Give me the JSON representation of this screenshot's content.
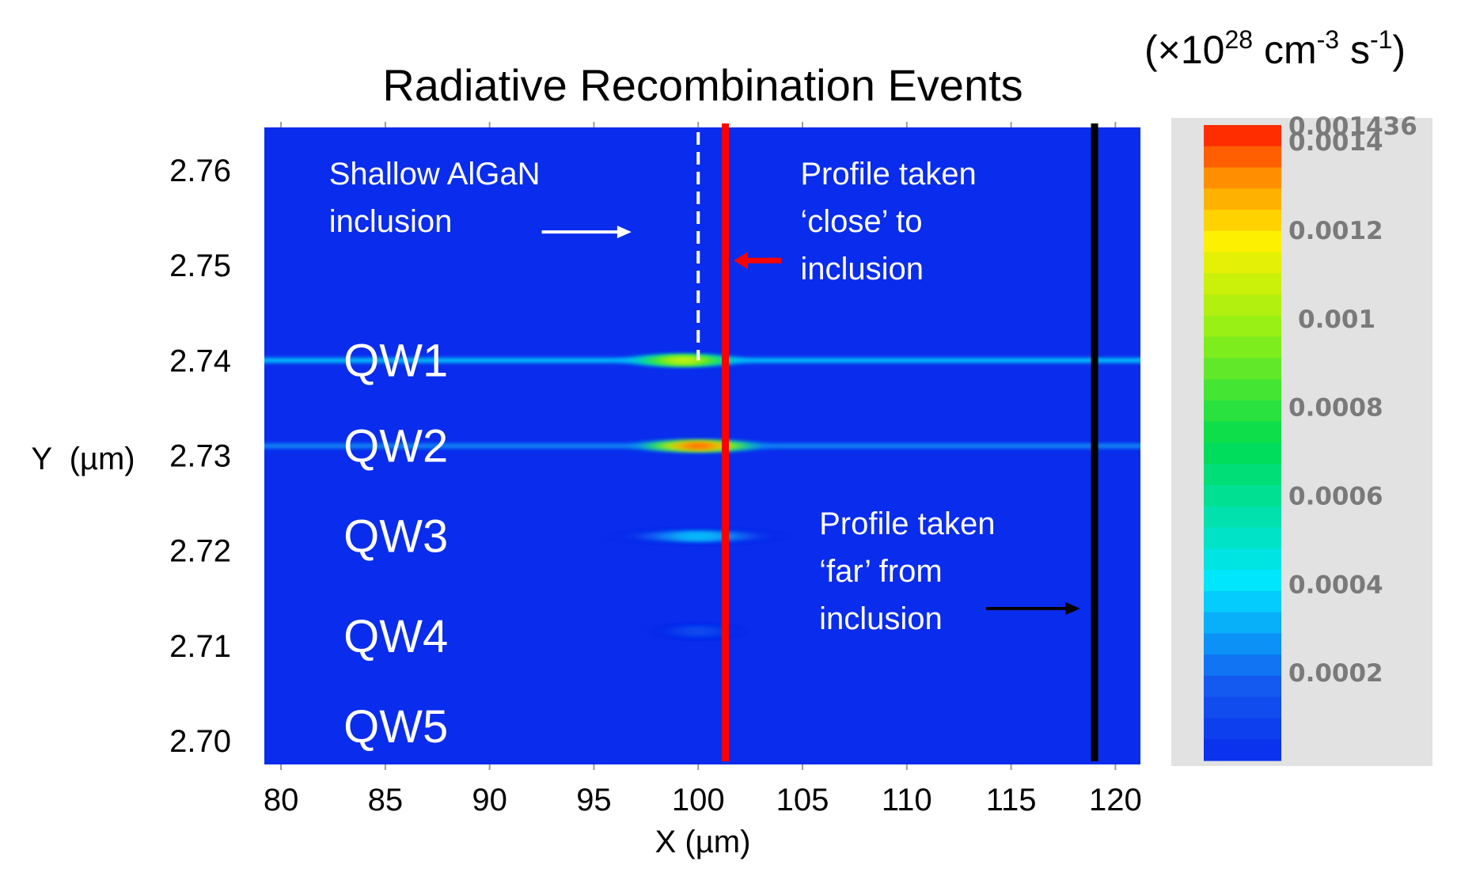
{
  "chart_data": {
    "type": "heatmap",
    "title": "Radiative Recombination Events",
    "xlabel": "X (µm)",
    "ylabel": "Y  (µm)",
    "xlim": [
      79.2,
      121.2
    ],
    "ylim": [
      2.6975,
      2.7645
    ],
    "x_ticks": [
      80,
      85,
      90,
      95,
      100,
      105,
      110,
      115,
      120
    ],
    "x_tick_labels": [
      "80",
      "85",
      "90",
      "95",
      "100",
      "105",
      "110",
      "115",
      "120"
    ],
    "y_ticks": [
      2.76,
      2.75,
      2.74,
      2.73,
      2.72,
      2.71,
      2.7
    ],
    "y_tick_labels": [
      "2.76",
      "2.75",
      "2.74",
      "2.73",
      "2.72",
      "2.71",
      "2.70"
    ],
    "background_color": "#0a2cec",
    "wells": [
      {
        "label": "QW1",
        "y": 2.74,
        "band_peak": 0.00035,
        "hotspot_peak": 0.00075,
        "hotspot_x": 99.3,
        "hotspot_width": 5.0
      },
      {
        "label": "QW2",
        "y": 2.731,
        "band_peak": 0.00025,
        "hotspot_peak": 0.00115,
        "hotspot_x": 100.0,
        "hotspot_width": 6.0
      },
      {
        "label": "QW3",
        "y": 2.7215,
        "band_peak": 0.0,
        "hotspot_peak": 0.00035,
        "hotspot_x": 100.0,
        "hotspot_width": 7.0
      },
      {
        "label": "QW4",
        "y": 2.7115,
        "band_peak": 0.0,
        "hotspot_peak": 0.00012,
        "hotspot_x": 100.0,
        "hotspot_width": 3.0
      },
      {
        "label": "QW5",
        "y": 2.7015,
        "band_peak": 0.0,
        "hotspot_peak": 0.0,
        "hotspot_x": 100.0,
        "hotspot_width": 1.0
      }
    ],
    "qw_labels": [
      "QW1",
      "QW2",
      "QW3",
      "QW4",
      "QW5"
    ],
    "qw_label_y": [
      2.74,
      2.731,
      2.7215,
      2.711,
      2.7015
    ],
    "qw_label_x": 83.0,
    "inclusion_line": {
      "x": 100.0,
      "y_from": 2.74,
      "y_to": 2.764,
      "style": "dashed",
      "color": "#ffffff"
    },
    "profile_lines": [
      {
        "name": "close",
        "x": 101.3,
        "color": "#ff0000"
      },
      {
        "name": "far",
        "x": 119.0,
        "color": "#000000"
      }
    ],
    "annotations": [
      {
        "lines": [
          "Shallow AlGaN",
          "inclusion"
        ],
        "x": 82.3,
        "y": 2.7585,
        "arrow": {
          "from": [
            92.5,
            2.7535
          ],
          "to": [
            96.8,
            2.7535
          ],
          "color": "#ffffff"
        }
      },
      {
        "lines": [
          "Profile taken",
          "‘close’ to",
          "inclusion"
        ],
        "x": 104.9,
        "y": 2.7585,
        "arrow": {
          "from": [
            104.0,
            2.7505
          ],
          "to": [
            101.7,
            2.7505
          ],
          "color": "#ff0000"
        }
      },
      {
        "lines": [
          "Profile taken",
          "‘far’ from",
          "inclusion"
        ],
        "x": 105.8,
        "y": 2.7217,
        "arrow": {
          "from": [
            113.8,
            2.7139
          ],
          "to": [
            118.3,
            2.7139
          ],
          "color": "#000000"
        }
      }
    ],
    "colorbar": {
      "unit_label": "(×10",
      "unit_exp": "28",
      "unit_mid": " cm",
      "unit_exp2": "-3",
      "unit_tail": " s",
      "unit_exp3": "-1",
      "unit_close": ")",
      "min": 0.0,
      "max": 0.001436,
      "top_label": "0.001436",
      "labels": [
        {
          "text": "0.001436",
          "value": 0.001436
        },
        {
          "text": "0.0014",
          "value": 0.0014
        },
        {
          "text": "0.0012",
          "value": 0.0012
        },
        {
          "text": "0.001",
          "value": 0.001
        },
        {
          "text": "0.0008",
          "value": 0.0008
        },
        {
          "text": "0.0006",
          "value": 0.0006
        },
        {
          "text": "0.0004",
          "value": 0.0004
        },
        {
          "text": "0.0002",
          "value": 0.0002
        }
      ],
      "panel_color": "#e2e2e2",
      "steps": 30
    },
    "grid": false
  }
}
